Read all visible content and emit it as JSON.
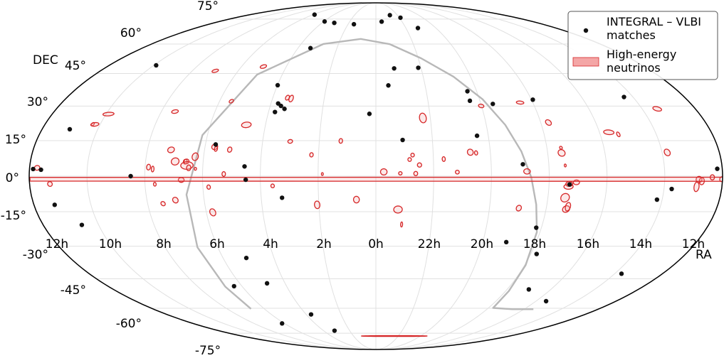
{
  "chart_data": {
    "type": "scatter",
    "projection": "Mollweide (equatorial, RA increasing to the left)",
    "grid": true,
    "legend_position": "top-right",
    "colors": {
      "matches": "#111111",
      "neutrinos_edge": "#d62728",
      "neutrinos_fill": "#f4a6a6",
      "galactic_plane": "#b8b8b8",
      "grid": "#e0e0e0"
    },
    "xlabel": "RA",
    "ylabel": "DEC",
    "ra_ticks": [
      "12h",
      "10h",
      "8h",
      "6h",
      "4h",
      "2h",
      "0h",
      "22h",
      "20h",
      "18h",
      "16h",
      "14h",
      "12h"
    ],
    "dec_ticks": [
      "75°",
      "60°",
      "45°",
      "30°",
      "15°",
      "0°",
      "-15°",
      "-30°",
      "-45°",
      "-60°",
      "-75°"
    ],
    "legend": [
      "INTEGRAL – VLBI matches",
      "High-energy neutrinos"
    ],
    "series": [
      {
        "name": "INTEGRAL – VLBI matches",
        "points": [
          [
            87.8,
            78.2
          ],
          [
            59.0,
            73.4
          ],
          [
            46.3,
            72.5
          ],
          [
            23.7,
            71.6
          ],
          [
            353.4,
            73.3
          ],
          [
            340.4,
            77.8
          ],
          [
            328.5,
            76.0
          ],
          [
            318.0,
            69.2
          ],
          [
            148.4,
            49.0
          ],
          [
            50.4,
            57.8
          ],
          [
            59.9,
            39.5
          ],
          [
            56.4,
            27.4
          ],
          [
            55.9,
            31.2
          ],
          [
            53.9,
            30.1
          ],
          [
            51.5,
            28.8
          ],
          [
            3.6,
            26.6
          ],
          [
            347.9,
            47.5
          ],
          [
            352.4,
            39.4
          ],
          [
            331.8,
            47.8
          ],
          [
            305.5,
            36.7
          ],
          [
            305.8,
            32.4
          ],
          [
            293.2,
            31.0
          ],
          [
            269.2,
            32.9
          ],
          [
            215.2,
            34.1
          ],
          [
            165.1,
            19.9
          ],
          [
            345.8,
            15.3
          ],
          [
            84.6,
            13.4
          ],
          [
            68.3,
            4.1
          ],
          [
            127.3,
            0.0
          ],
          [
            67.6,
            -1.5
          ],
          [
            49.1,
            -9.1
          ],
          [
            306.0,
            17.1
          ],
          [
            283.5,
            5.0
          ],
          [
            259.3,
            -3.5
          ],
          [
            206.0,
            -5.4
          ],
          [
            212.7,
            -9.9
          ],
          [
            174.0,
            2.7
          ],
          [
            182.6,
            3.1
          ],
          [
            178.1,
            3.0
          ],
          [
            169.1,
            -12.1
          ],
          [
            159.1,
            -20.7
          ],
          [
            272.8,
            -21.9
          ],
          [
            286.8,
            -28.2
          ],
          [
            266.6,
            -33.5
          ],
          [
            255.1,
            -50.2
          ],
          [
            232.4,
            -56.2
          ],
          [
            205.7,
            -42.6
          ],
          [
            76.3,
            -35.3
          ],
          [
            71.9,
            -47.2
          ],
          [
            95.3,
            -48.6
          ],
          [
            92.4,
            -68.7
          ],
          [
            55.8,
            -63.4
          ],
          [
            47.4,
            -73.3
          ]
        ]
      },
      {
        "name": "High-energy neutrinos",
        "ellipses": [
          [
            154.1,
            22.1,
            0.7,
            0.7
          ],
          [
            152.9,
            22.0,
            2.0,
            0.8
          ],
          [
            148.7,
            26.5,
            2.7,
            0.8
          ],
          [
            112.4,
            27.6,
            1.6,
            0.8
          ],
          [
            105.0,
            46.3,
            1.3,
            0.8
          ],
          [
            75.4,
            48.4,
            1.3,
            0.9
          ],
          [
            83.2,
            32.2,
            1.0,
            0.8
          ],
          [
            118.2,
            3.8,
            1.0,
            1.2
          ],
          [
            116.0,
            3.0,
            0.7,
            1.2
          ],
          [
            114.9,
            -3.4,
            0.7,
            0.8
          ],
          [
            111.9,
            -11.6,
            1.1,
            0.9
          ],
          [
            105.1,
            -10.1,
            1.4,
            1.2
          ],
          [
            101.1,
            -1.6,
            1.5,
            1.0
          ],
          [
            104.6,
            6.2,
            2.0,
            1.5
          ],
          [
            107.6,
            11.1,
            1.7,
            1.2
          ],
          [
            99.3,
            6.1,
            1.0,
            1.0
          ],
          [
            98.7,
            6.2,
            1.3,
            1.0
          ],
          [
            98.3,
            4.5,
            3.2,
            1.6
          ],
          [
            97.3,
            3.5,
            1.1,
            1.2
          ],
          [
            94.4,
            8.2,
            1.6,
            1.6
          ],
          [
            93.8,
            3.1,
            0.6,
            0.6
          ],
          [
            87.0,
            -4.6,
            0.9,
            0.9
          ],
          [
            86.6,
            -15.3,
            1.5,
            1.5
          ],
          [
            84.9,
            12.4,
            1.5,
            1.2
          ],
          [
            84.1,
            11.5,
            0.8,
            1.0
          ],
          [
            79.0,
            0.9,
            0.9,
            1.0
          ],
          [
            76.8,
            11.2,
            1.1,
            1.1
          ],
          [
            70.4,
            21.8,
            2.4,
            1.2
          ],
          [
            53.7,
            -4.1,
            0.9,
            0.8
          ],
          [
            51.5,
            33.8,
            0.9,
            1.1
          ],
          [
            49.2,
            33.4,
            1.0,
            1.5
          ],
          [
            45.4,
            14.7,
            1.2,
            0.8
          ],
          [
            33.7,
            9.0,
            0.9,
            0.9
          ],
          [
            27.8,
            0.9,
            0.5,
            0.6
          ],
          [
            30.9,
            -12.1,
            1.4,
            1.6
          ],
          [
            18.6,
            14.9,
            0.9,
            1.0
          ],
          [
            10.2,
            -9.9,
            1.5,
            1.4
          ],
          [
            355.9,
            1.8,
            1.7,
            1.3
          ],
          [
            348.3,
            -14.1,
            2.2,
            1.5
          ],
          [
            347.3,
            1.2,
            0.9,
            0.7
          ],
          [
            342.4,
            7.0,
            0.9,
            0.8
          ],
          [
            340.8,
            8.9,
            0.9,
            0.8
          ],
          [
            339.3,
            1.1,
            1.0,
            0.9
          ],
          [
            337.3,
            4.7,
            1.1,
            0.9
          ],
          [
            346.1,
            -20.5,
            0.5,
            1.1
          ],
          [
            334.1,
            24.8,
            1.7,
            2.1
          ],
          [
            324.6,
            7.2,
            0.8,
            1.0
          ],
          [
            317.7,
            1.7,
            1.0,
            0.8
          ],
          [
            310.5,
            10.1,
            1.5,
            1.3
          ],
          [
            307.5,
            9.8,
            0.8,
            0.9
          ],
          [
            300.2,
            30.1,
            1.3,
            0.8
          ],
          [
            277.3,
            31.6,
            1.8,
            0.7
          ],
          [
            284.5,
            -13.5,
            1.3,
            1.2
          ],
          [
            281.5,
            2.0,
            1.7,
            1.1
          ],
          [
            265.8,
            22.8,
            1.4,
            1.2
          ],
          [
            262.7,
            9.8,
            1.8,
            1.4
          ],
          [
            262.6,
            12.0,
            0.7,
            0.6
          ],
          [
            261.0,
            -9.1,
            2.2,
            1.8
          ],
          [
            259.8,
            -4.4,
            2.4,
            1.1
          ],
          [
            259.5,
            -3.3,
            1.8,
            1.0
          ],
          [
            259.4,
            -13.9,
            1.8,
            1.4
          ],
          [
            258.7,
            -12.9,
            1.3,
            1.8
          ],
          [
            255.8,
            -2.6,
            1.6,
            1.0
          ],
          [
            261.5,
            4.5,
            0.5,
            0.6
          ],
          [
            235.0,
            18.6,
            2.6,
            1.0
          ],
          [
            230.3,
            17.7,
            0.8,
            1.0
          ],
          [
            207.3,
            10.0,
            1.5,
            1.4
          ],
          [
            201.5,
            28.8,
            2.0,
            1.0
          ],
          [
            192.2,
            -1.4,
            1.5,
            1.3
          ],
          [
            193.2,
            -4.5,
            1.3,
            2.0
          ],
          [
            190.7,
            -2.1,
            1.3,
            1.5
          ],
          [
            180.5,
            -1.3,
            0.9,
            1.0
          ],
          [
            185.3,
            -0.5,
            1.1,
            1.1
          ],
          [
            176.1,
            3.5,
            1.4,
            1.0
          ],
          [
            169.4,
            -3.3,
            1.2,
            1.0
          ],
          [
            335.3,
            -77.0,
            10.0,
            0.3
          ]
        ]
      },
      {
        "name": "Galactic plane",
        "points": [
          [
            100.8,
            -60.3
          ],
          [
            101.5,
            -48.8
          ],
          [
            101.6,
            -30.5
          ],
          [
            98.9,
            -7.8
          ],
          [
            92.7,
            17.4
          ],
          [
            76.1,
            44.5
          ],
          [
            42.2,
            60.0
          ],
          [
            12.8,
            62.8
          ],
          [
            348.8,
            59.9
          ],
          [
            327.9,
            52.5
          ],
          [
            310.8,
            43.5
          ],
          [
            298.2,
            33.1
          ],
          [
            289.7,
            21.8
          ],
          [
            283.7,
            10.5
          ],
          [
            279.3,
            -0.5
          ],
          [
            275.6,
            -12.0
          ],
          [
            271.7,
            -23.8
          ],
          [
            269.4,
            -38.6
          ],
          [
            267.8,
            -51.0
          ],
          [
            266.3,
            -59.8
          ],
          [
            249.6,
            -60.5
          ],
          [
            232.4,
            -60.5
          ]
        ]
      }
    ]
  }
}
